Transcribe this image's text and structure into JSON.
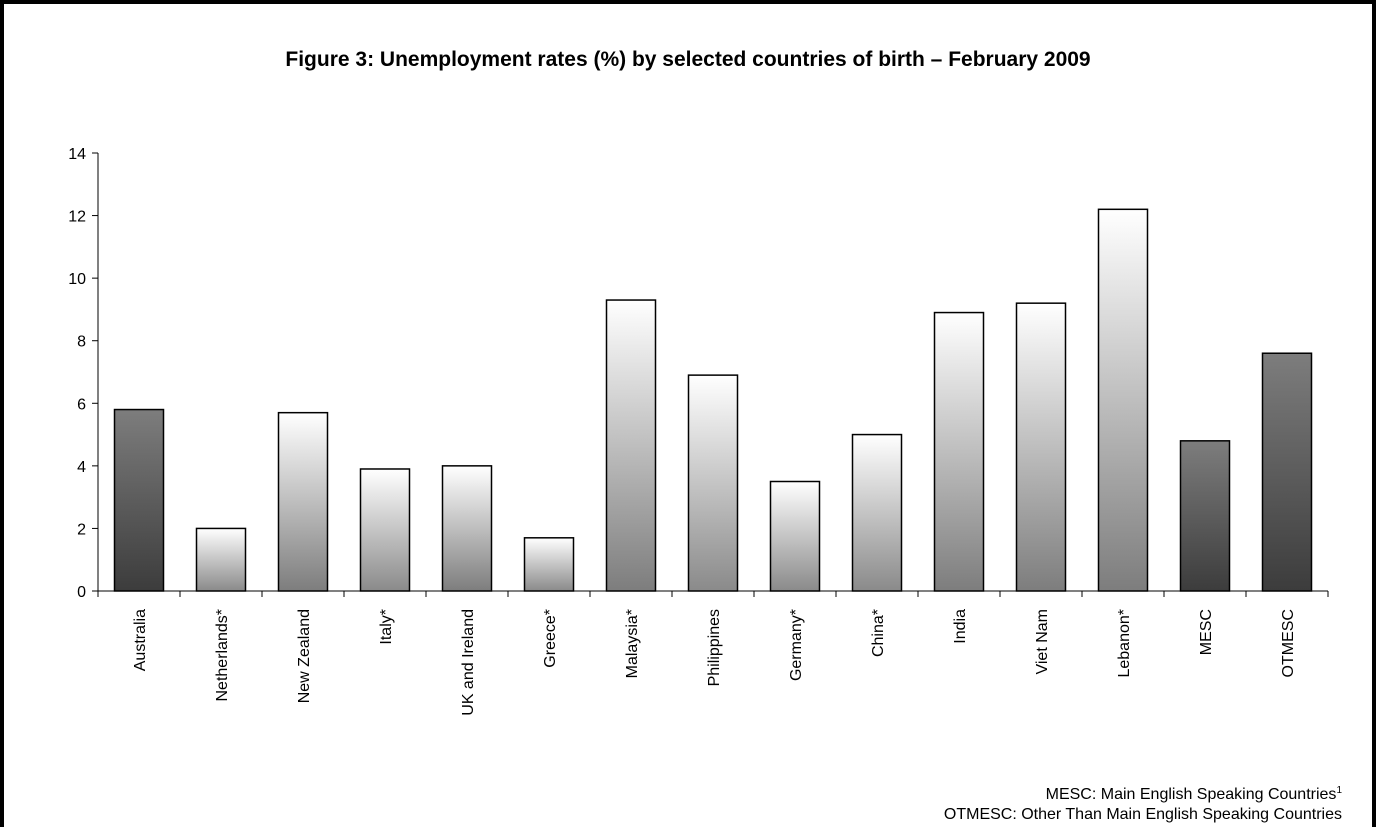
{
  "chart_data": {
    "type": "bar",
    "title": "Figure 3: Unemployment rates (%) by selected countries of birth – February 2009",
    "xlabel": "",
    "ylabel": "",
    "ylim": [
      0,
      14
    ],
    "yticks": [
      0,
      2,
      4,
      6,
      8,
      10,
      12,
      14
    ],
    "grid": false,
    "categories": [
      "Australia",
      "Netherlands*",
      "New Zealand",
      "Italy*",
      "UK and Ireland",
      "Greece*",
      "Malaysia*",
      "Philippines",
      "Germany*",
      "China*",
      "India",
      "Viet Nam",
      "Lebanon*",
      "MESC",
      "OTMESC"
    ],
    "values": [
      5.8,
      2.0,
      5.7,
      3.9,
      4.0,
      1.7,
      9.3,
      6.9,
      3.5,
      5.0,
      8.9,
      9.2,
      12.2,
      4.8,
      7.6
    ],
    "bar_styles": [
      "dark",
      "light",
      "mid",
      "light",
      "mid",
      "light",
      "mid",
      "light",
      "light",
      "light",
      "mid",
      "mid",
      "mid",
      "dark",
      "dark"
    ],
    "colors": {
      "dark": "#3c3c3c",
      "mid": "#7d7d7d",
      "light": "#ffffff",
      "outline": "#000000"
    }
  },
  "notes": {
    "mesc": "MESC: Main English Speaking Countries",
    "mesc_sup": "1",
    "otmesc": "OTMESC: Other Than Main English Speaking Countries"
  }
}
